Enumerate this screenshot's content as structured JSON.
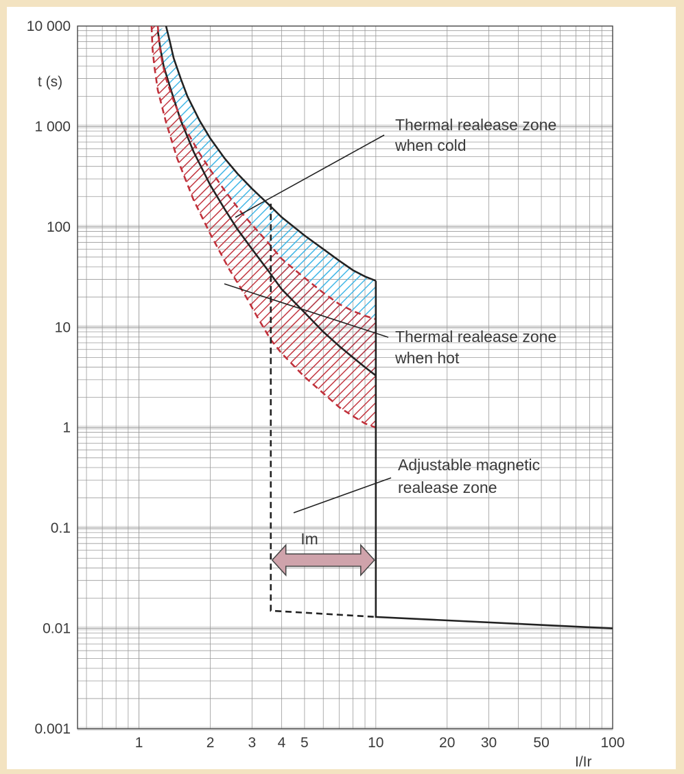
{
  "chart_data": {
    "type": "line",
    "title": "",
    "xlabel": "I/Ir",
    "ylabel": "t (s)",
    "x_scale": "log",
    "y_scale": "log",
    "xlim": [
      0.55,
      100
    ],
    "ylim": [
      0.001,
      10000
    ],
    "grid": true,
    "x_ticks": [
      {
        "value": 1,
        "label": "1"
      },
      {
        "value": 2,
        "label": "2"
      },
      {
        "value": 3,
        "label": "3"
      },
      {
        "value": 4,
        "label": "4"
      },
      {
        "value": 5,
        "label": "5"
      },
      {
        "value": 10,
        "label": "10"
      },
      {
        "value": 20,
        "label": "20"
      },
      {
        "value": 30,
        "label": "30"
      },
      {
        "value": 50,
        "label": "50"
      },
      {
        "value": 100,
        "label": "100"
      }
    ],
    "y_ticks": [
      {
        "value": 10000,
        "label": "10 000"
      },
      {
        "value": 1000,
        "label": "1 000"
      },
      {
        "value": 100,
        "label": "100"
      },
      {
        "value": 10,
        "label": "10"
      },
      {
        "value": 1,
        "label": "1"
      },
      {
        "value": 0.1,
        "label": "0.1"
      },
      {
        "value": 0.01,
        "label": "0.01"
      },
      {
        "value": 0.001,
        "label": "0.001"
      }
    ],
    "series": [
      {
        "key": "cold-upper",
        "color": "#222222",
        "style": "solid",
        "points": [
          [
            1.3,
            10000
          ],
          [
            1.35,
            7000
          ],
          [
            1.4,
            4800
          ],
          [
            1.5,
            3000
          ],
          [
            1.6,
            2000
          ],
          [
            1.8,
            1150
          ],
          [
            2.0,
            760
          ],
          [
            2.3,
            480
          ],
          [
            2.6,
            340
          ],
          [
            3.0,
            240
          ],
          [
            3.5,
            170
          ],
          [
            4.0,
            125
          ],
          [
            5.0,
            82
          ],
          [
            6.0,
            60
          ],
          [
            7.0,
            46
          ],
          [
            8.0,
            37
          ],
          [
            9.0,
            32
          ],
          [
            10.0,
            29
          ]
        ]
      },
      {
        "key": "cold-lower",
        "color": "#222222",
        "style": "solid",
        "points": [
          [
            1.2,
            9000
          ],
          [
            1.23,
            6000
          ],
          [
            1.27,
            4000
          ],
          [
            1.35,
            2500
          ],
          [
            1.5,
            1150
          ],
          [
            1.7,
            560
          ],
          [
            2.0,
            260
          ],
          [
            2.3,
            150
          ],
          [
            2.6,
            95
          ],
          [
            3.0,
            60
          ],
          [
            3.5,
            37
          ],
          [
            4.0,
            24
          ],
          [
            5.0,
            14
          ],
          [
            6.0,
            9
          ],
          [
            7.0,
            6.5
          ],
          [
            8.0,
            5
          ],
          [
            9.0,
            4
          ],
          [
            10.0,
            3.3
          ]
        ]
      },
      {
        "key": "hot-upper",
        "color": "#c0303a",
        "style": "dashed",
        "points": [
          [
            1.2,
            10000
          ],
          [
            1.22,
            6500
          ],
          [
            1.25,
            4500
          ],
          [
            1.3,
            3000
          ],
          [
            1.4,
            1800
          ],
          [
            1.55,
            1000
          ],
          [
            1.8,
            540
          ],
          [
            2.0,
            370
          ],
          [
            2.3,
            230
          ],
          [
            2.7,
            140
          ],
          [
            3.0,
            105
          ],
          [
            3.5,
            70
          ],
          [
            4.0,
            48
          ],
          [
            5.0,
            31
          ],
          [
            6.0,
            22
          ],
          [
            7.0,
            17
          ],
          [
            8.0,
            14.5
          ],
          [
            9.0,
            13
          ],
          [
            10.0,
            12
          ]
        ]
      },
      {
        "key": "hot-lower",
        "color": "#c0303a",
        "style": "dashed",
        "points": [
          [
            1.13,
            10000
          ],
          [
            1.14,
            6000
          ],
          [
            1.16,
            4000
          ],
          [
            1.2,
            2300
          ],
          [
            1.3,
            1100
          ],
          [
            1.45,
            480
          ],
          [
            1.7,
            185
          ],
          [
            2.0,
            85
          ],
          [
            2.4,
            38
          ],
          [
            2.8,
            21
          ],
          [
            3.2,
            12
          ],
          [
            3.6,
            7.5
          ],
          [
            4.0,
            5.5
          ],
          [
            5.0,
            3.2
          ],
          [
            6.0,
            2.2
          ],
          [
            7.0,
            1.6
          ],
          [
            8.0,
            1.3
          ],
          [
            9.0,
            1.1
          ],
          [
            10.0,
            1.0
          ]
        ]
      },
      {
        "key": "magnetic-min-limit",
        "color": "#222222",
        "style": "dashed",
        "points": [
          [
            3.6,
            170
          ],
          [
            3.6,
            0.015
          ],
          [
            10.0,
            0.013
          ]
        ]
      },
      {
        "key": "magnetic-max-limit",
        "color": "#222222",
        "style": "solid",
        "points": [
          [
            10.0,
            29
          ],
          [
            10.0,
            0.013
          ],
          [
            100.0,
            0.01
          ]
        ]
      }
    ],
    "zones": [
      {
        "key": "cold-zone",
        "color": "#3ab4e6",
        "hatch": "diagonal",
        "between": [
          "cold-upper",
          "cold-lower"
        ]
      },
      {
        "key": "hot-zone",
        "color": "#c0303a",
        "hatch": "diagonal",
        "between": [
          "hot-upper",
          "hot-lower"
        ]
      }
    ],
    "annotations": {
      "cold_line1": "Thermal realease zone",
      "cold_line2": "when cold",
      "hot_line1": "Thermal realease zone",
      "hot_line2": "when hot",
      "mag_line1": "Adjustable magnetic",
      "mag_line2": "realease zone",
      "im_label": "Im"
    },
    "im_range": [
      3.6,
      10
    ],
    "im_arrow_color": "#cfa3ab",
    "axis_color": "#444444",
    "grid_color": "#9a9a9a",
    "grid_major_color": "#c8c8c8"
  }
}
